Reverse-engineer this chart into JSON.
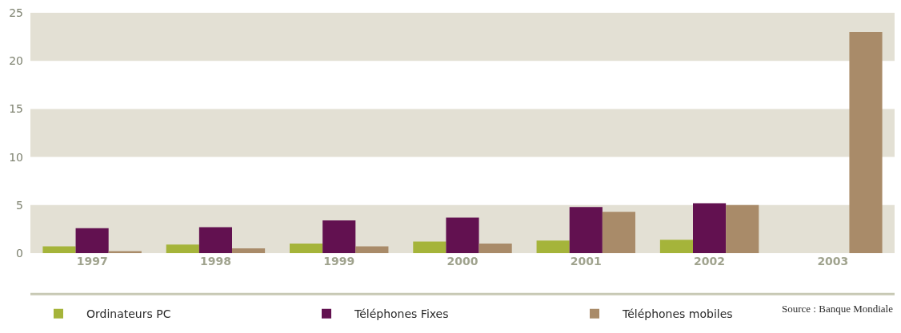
{
  "chart_data": {
    "type": "bar",
    "categories": [
      "1997",
      "1998",
      "1999",
      "2000",
      "2001",
      "2002",
      "2003"
    ],
    "series": [
      {
        "name": "Ordinateurs PC",
        "color": "#a5b43a",
        "values": [
          0.7,
          0.9,
          1.0,
          1.2,
          1.3,
          1.4,
          null
        ]
      },
      {
        "name": "Téléphones Fixes",
        "color": "#621150",
        "values": [
          2.6,
          2.7,
          3.4,
          3.7,
          4.8,
          5.2,
          null
        ]
      },
      {
        "name": "Téléphones mobiles",
        "color": "#a98b69",
        "values": [
          0.2,
          0.5,
          0.7,
          1.0,
          4.3,
          5.0,
          23.0
        ]
      }
    ],
    "ylim": [
      0,
      25
    ],
    "yticks": [
      0,
      5,
      10,
      15,
      20,
      25
    ],
    "bands": [
      {
        "axis": "y",
        "from": 0,
        "to": 5,
        "color": "#e3e0d4"
      },
      {
        "axis": "y",
        "from": 10,
        "to": 15,
        "color": "#e3e0d4"
      },
      {
        "axis": "y",
        "from": 20,
        "to": 25,
        "color": "#e3e0d4"
      }
    ],
    "grid": false,
    "legend": "bottom",
    "annotations": [
      "Source : Banque Mondiale"
    ]
  }
}
